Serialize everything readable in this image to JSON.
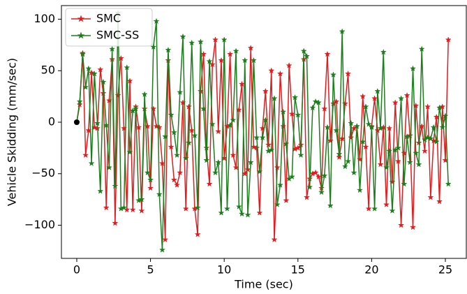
{
  "chart_data": {
    "type": "line",
    "xlabel": "Time  (sec)",
    "ylabel": "Vehicle Skidding (mm/sec)",
    "x": [
      0,
      0.2,
      0.4,
      0.6,
      0.8,
      1,
      1.2,
      1.4,
      1.6,
      1.8,
      2,
      2.2,
      2.4,
      2.6,
      2.8,
      3,
      3.2,
      3.4,
      3.6,
      3.8,
      4,
      4.2,
      4.4,
      4.6,
      4.8,
      5,
      5.2,
      5.4,
      5.6,
      5.8,
      6,
      6.2,
      6.4,
      6.6,
      6.8,
      7,
      7.2,
      7.4,
      7.6,
      7.8,
      8,
      8.2,
      8.4,
      8.6,
      8.8,
      9,
      9.2,
      9.4,
      9.6,
      9.8,
      10,
      10.2,
      10.4,
      10.6,
      10.8,
      11,
      11.2,
      11.4,
      11.6,
      11.8,
      12,
      12.2,
      12.4,
      12.6,
      12.8,
      13,
      13.2,
      13.4,
      13.6,
      13.8,
      14,
      14.2,
      14.4,
      14.6,
      14.8,
      15,
      15.2,
      15.4,
      15.6,
      15.8,
      16,
      16.2,
      16.4,
      16.6,
      16.8,
      17,
      17.2,
      17.4,
      17.6,
      17.8,
      18,
      18.2,
      18.4,
      18.6,
      18.8,
      19,
      19.2,
      19.4,
      19.6,
      19.8,
      20,
      20.2,
      20.4,
      20.6,
      20.8,
      21,
      21.2,
      21.4,
      21.6,
      21.8,
      22,
      22.2,
      22.4,
      22.6,
      22.8,
      23,
      23.2,
      23.4,
      23.6,
      23.8,
      24,
      24.2,
      24.4,
      24.6,
      24.8,
      25,
      25.2
    ],
    "series": [
      {
        "name": "SMC",
        "color": "#e41a1c",
        "values": [
          0,
          17,
          67,
          -32,
          -8,
          48,
          -5,
          -6,
          51,
          28,
          -83,
          21,
          61,
          -98,
          26,
          62,
          -6,
          -85,
          40,
          -85,
          15,
          -5,
          -86,
          13,
          -4,
          -64,
          13,
          -4,
          -5,
          -40,
          -114,
          60,
          -24,
          -56,
          -61,
          -49,
          19,
          -84,
          15,
          -8,
          -84,
          -109,
          30,
          66,
          -25,
          -60,
          56,
          80,
          -9,
          60,
          -35,
          -4,
          66,
          -32,
          -44,
          12,
          37,
          -50,
          -46,
          72,
          -24,
          -25,
          -88,
          -6,
          30,
          -22,
          50,
          -114,
          -44,
          47,
          -4,
          -76,
          55,
          8,
          -26,
          -25,
          -22,
          61,
          -73,
          -55,
          -50,
          -49,
          -53,
          -64,
          13,
          66,
          -18,
          18,
          20,
          -34,
          -16,
          18,
          47,
          -15,
          -6,
          -4,
          -36,
          25,
          -24,
          -84,
          -4,
          23,
          -8,
          -41,
          -5,
          -80,
          -6,
          -58,
          19,
          -38,
          -100,
          -30,
          26,
          -13,
          -102,
          16,
          -20,
          -4,
          -28,
          15,
          -73,
          -18,
          5,
          -77,
          15,
          -37,
          80
        ]
      },
      {
        "name": "SMC-SS",
        "color": "#1a7f1a",
        "values": [
          0,
          20,
          66,
          34,
          52,
          -40,
          47,
          -1,
          -67,
          39,
          -3,
          -44,
          71,
          -62,
          106,
          -84,
          -83,
          53,
          -29,
          11,
          13,
          -76,
          -75,
          27,
          -49,
          -56,
          73,
          98,
          -70,
          -124,
          -14,
          70,
          7,
          -10,
          -32,
          29,
          83,
          -35,
          -20,
          77,
          -13,
          -83,
          78,
          13,
          -37,
          59,
          -2,
          -49,
          -39,
          -88,
          80,
          -84,
          -3,
          2,
          69,
          -82,
          -89,
          60,
          -90,
          -39,
          60,
          -15,
          -48,
          -15,
          2,
          -28,
          -27,
          23,
          -80,
          -61,
          10,
          -21,
          -55,
          -53,
          24,
          7,
          -32,
          69,
          64,
          -63,
          14,
          20,
          19,
          -68,
          -52,
          -5,
          -81,
          46,
          -8,
          -31,
          88,
          -43,
          -38,
          -1,
          -49,
          -4,
          -66,
          -19,
          15,
          -2,
          -5,
          -84,
          30,
          -6,
          68,
          -44,
          -28,
          -86,
          -27,
          -25,
          23,
          -60,
          -14,
          -39,
          52,
          -30,
          -41,
          71,
          -17,
          -15,
          -16,
          -5,
          -19,
          14,
          -5,
          6,
          -60
        ]
      }
    ],
    "initial_point": {
      "x": 0,
      "y": 0,
      "color": "#000000"
    },
    "xlim": [
      -1.04,
      26.42
    ],
    "ylim": [
      -132.2,
      113.2
    ],
    "xticks": [
      0,
      5,
      10,
      15,
      20,
      25
    ],
    "yticks": [
      {
        "value": -100,
        "label": "−100"
      },
      {
        "value": -50,
        "label": "−50"
      },
      0,
      50,
      100
    ],
    "legend": "upper left"
  }
}
